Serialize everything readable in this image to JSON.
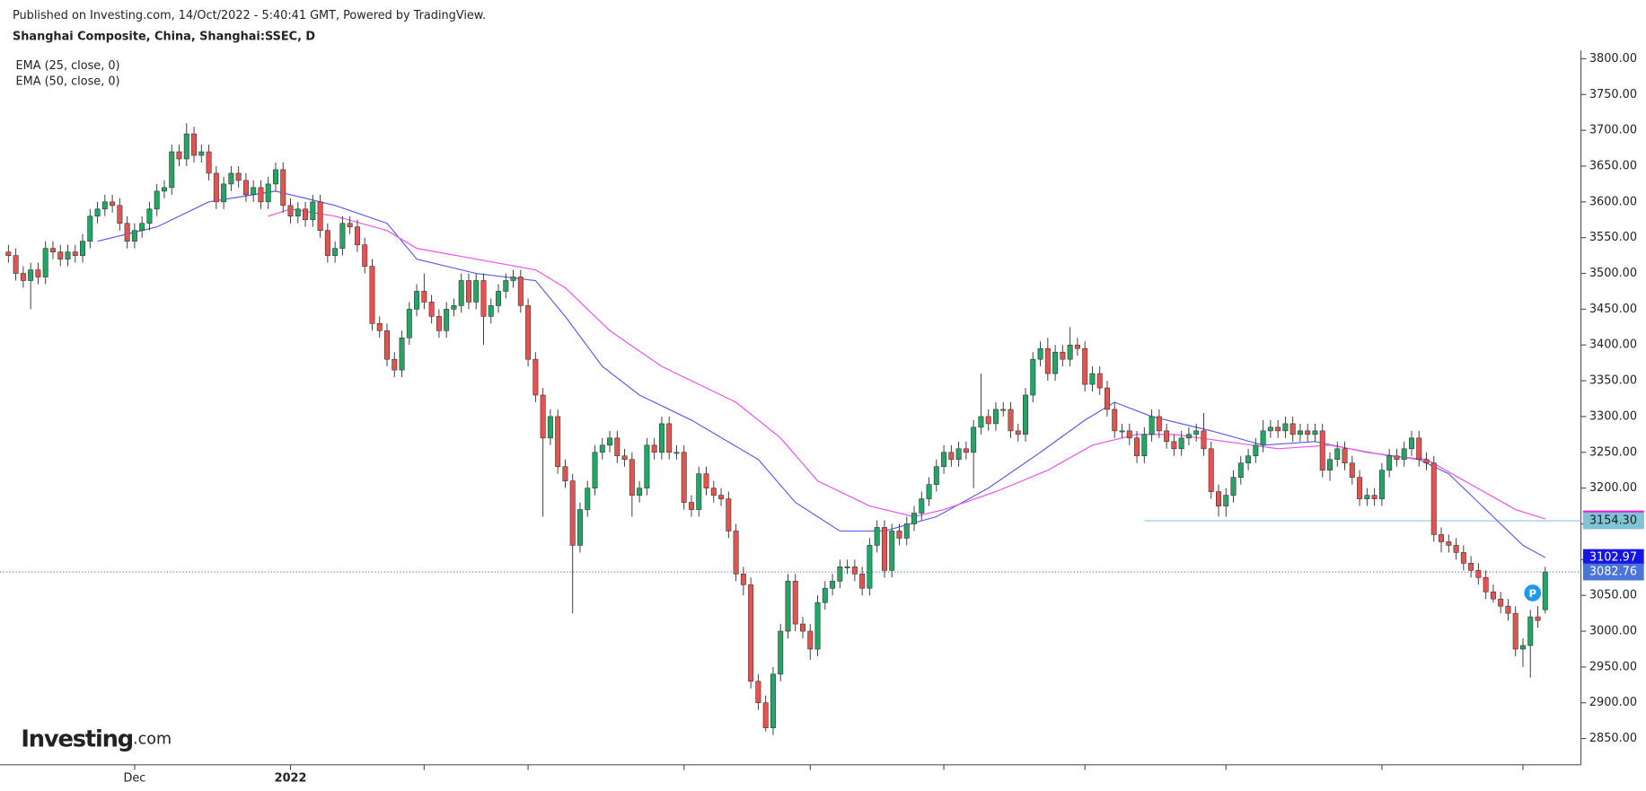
{
  "header": "Published on Investing.com, 14/Oct/2022 - 5:40:41 GMT, Powered by TradingView.",
  "logo": {
    "brand": "Investing",
    "suffix": ".com"
  },
  "chart_data": {
    "type": "candlestick",
    "title": "Shanghai Composite, China, Shanghai:SSEC, D",
    "up_color": "#22a565",
    "down_color": "#e4534f",
    "open": [
      3530,
      3525,
      3500,
      3490,
      3505,
      3495,
      3535,
      3530,
      3520,
      3530,
      3525,
      3545,
      3580,
      3590,
      3600,
      3595,
      3570,
      3545,
      3560,
      3570,
      3590,
      3615,
      3620,
      3670,
      3660,
      3695,
      3665,
      3670,
      3640,
      3600,
      3625,
      3640,
      3630,
      3610,
      3620,
      3600,
      3625,
      3645,
      3595,
      3580,
      3590,
      3575,
      3600,
      3560,
      3525,
      3535,
      3570,
      3565,
      3540,
      3510,
      3430,
      3420,
      3380,
      3365,
      3410,
      3450,
      3475,
      3460,
      3440,
      3420,
      3450,
      3455,
      3490,
      3460,
      3490,
      3440,
      3455,
      3475,
      3490,
      3495,
      3455,
      3380,
      3330,
      3270,
      3300,
      3230,
      3210,
      3120,
      3170,
      3200,
      3250,
      3260,
      3270,
      3245,
      3240,
      3190,
      3200,
      3260,
      3250,
      3290,
      3250,
      3250,
      3180,
      3170,
      3220,
      3200,
      3190,
      3185,
      3140,
      3080,
      3065,
      2930,
      2900,
      2865,
      2940,
      3000,
      3070,
      3010,
      3000,
      2975,
      3040,
      3060,
      3070,
      3090,
      3090,
      3080,
      3060,
      3120,
      3145,
      3085,
      3140,
      3130,
      3150,
      3165,
      3185,
      3205,
      3230,
      3250,
      3240,
      3255,
      3250,
      3285,
      3300,
      3290,
      3310,
      3310,
      3280,
      3275,
      3330,
      3380,
      3395,
      3360,
      3390,
      3380,
      3400,
      3395,
      3345,
      3360,
      3340,
      3310,
      3280,
      3280,
      3270,
      3245,
      3275,
      3300,
      3280,
      3265,
      3255,
      3270,
      3275,
      3280,
      3255,
      3195,
      3175,
      3190,
      3215,
      3235,
      3245,
      3260,
      3280,
      3285,
      3280,
      3290,
      3275,
      3280,
      3275,
      3280,
      3225,
      3240,
      3255,
      3235,
      3215,
      3185,
      3190,
      3185,
      3225,
      3245,
      3240,
      3255,
      3270,
      3240,
      3235,
      3135,
      3125,
      3120,
      3110,
      3095,
      3085,
      3075,
      3055,
      3045,
      3035,
      3025,
      2975,
      2980,
      3020,
      3030
    ],
    "high": [
      3540,
      3535,
      3510,
      3515,
      3515,
      3545,
      3545,
      3540,
      3540,
      3540,
      3555,
      3590,
      3600,
      3610,
      3610,
      3605,
      3580,
      3570,
      3580,
      3600,
      3625,
      3630,
      3680,
      3680,
      3710,
      3705,
      3680,
      3680,
      3650,
      3635,
      3650,
      3650,
      3640,
      3630,
      3630,
      3635,
      3655,
      3655,
      3605,
      3600,
      3600,
      3610,
      3610,
      3570,
      3545,
      3580,
      3580,
      3575,
      3550,
      3520,
      3440,
      3430,
      3390,
      3420,
      3460,
      3485,
      3500,
      3470,
      3450,
      3460,
      3465,
      3500,
      3500,
      3500,
      3500,
      3465,
      3485,
      3500,
      3505,
      3505,
      3465,
      3390,
      3340,
      3310,
      3310,
      3240,
      3220,
      3180,
      3210,
      3260,
      3270,
      3280,
      3280,
      3255,
      3250,
      3210,
      3270,
      3270,
      3300,
      3300,
      3260,
      3260,
      3190,
      3230,
      3230,
      3210,
      3200,
      3195,
      3150,
      3090,
      3075,
      2940,
      2910,
      2950,
      3010,
      3080,
      3080,
      3020,
      3010,
      3050,
      3070,
      3080,
      3100,
      3100,
      3100,
      3090,
      3130,
      3155,
      3155,
      3150,
      3150,
      3160,
      3175,
      3195,
      3215,
      3240,
      3260,
      3260,
      3265,
      3265,
      3295,
      3360,
      3310,
      3320,
      3320,
      3320,
      3290,
      3340,
      3390,
      3405,
      3410,
      3400,
      3400,
      3425,
      3410,
      3405,
      3370,
      3370,
      3350,
      3320,
      3290,
      3290,
      3280,
      3285,
      3310,
      3310,
      3290,
      3275,
      3280,
      3285,
      3290,
      3305,
      3265,
      3205,
      3200,
      3225,
      3245,
      3255,
      3270,
      3295,
      3295,
      3295,
      3300,
      3300,
      3290,
      3290,
      3290,
      3290,
      3250,
      3265,
      3265,
      3245,
      3225,
      3200,
      3200,
      3235,
      3255,
      3255,
      3265,
      3280,
      3280,
      3250,
      3245,
      3145,
      3135,
      3130,
      3120,
      3105,
      3095,
      3085,
      3065,
      3055,
      3045,
      3035,
      2990,
      3030,
      3035,
      3090
    ],
    "low": [
      3515,
      3490,
      3480,
      3450,
      3485,
      3485,
      3520,
      3510,
      3510,
      3515,
      3515,
      3535,
      3570,
      3580,
      3585,
      3560,
      3535,
      3535,
      3550,
      3560,
      3580,
      3605,
      3610,
      3650,
      3650,
      3655,
      3655,
      3630,
      3590,
      3590,
      3615,
      3620,
      3600,
      3600,
      3590,
      3590,
      3615,
      3585,
      3570,
      3570,
      3565,
      3565,
      3550,
      3515,
      3515,
      3525,
      3555,
      3530,
      3500,
      3420,
      3410,
      3370,
      3355,
      3355,
      3400,
      3440,
      3450,
      3430,
      3410,
      3410,
      3440,
      3445,
      3450,
      3450,
      3400,
      3430,
      3445,
      3465,
      3480,
      3445,
      3370,
      3320,
      3160,
      3260,
      3220,
      3200,
      3025,
      3110,
      3160,
      3190,
      3240,
      3250,
      3235,
      3230,
      3160,
      3180,
      3190,
      3240,
      3240,
      3240,
      3240,
      3170,
      3160,
      3160,
      3190,
      3180,
      3175,
      3130,
      3070,
      3050,
      2920,
      2890,
      2860,
      2855,
      2930,
      2990,
      3000,
      2990,
      2960,
      2965,
      3030,
      3050,
      3060,
      3080,
      3070,
      3050,
      3050,
      3110,
      3075,
      3075,
      3120,
      3120,
      3140,
      3155,
      3175,
      3195,
      3220,
      3230,
      3230,
      3240,
      3200,
      3275,
      3280,
      3280,
      3300,
      3270,
      3265,
      3265,
      3320,
      3370,
      3350,
      3350,
      3370,
      3370,
      3385,
      3335,
      3335,
      3330,
      3300,
      3270,
      3270,
      3260,
      3235,
      3235,
      3265,
      3270,
      3255,
      3245,
      3245,
      3260,
      3265,
      3245,
      3185,
      3160,
      3160,
      3180,
      3205,
      3225,
      3235,
      3250,
      3270,
      3270,
      3270,
      3265,
      3265,
      3265,
      3265,
      3215,
      3210,
      3230,
      3225,
      3205,
      3175,
      3175,
      3175,
      3175,
      3215,
      3230,
      3230,
      3245,
      3230,
      3225,
      3125,
      3110,
      3110,
      3100,
      3085,
      3075,
      3065,
      3045,
      3040,
      3025,
      3015,
      2965,
      2950,
      2935,
      3005,
      3025
    ],
    "close": [
      3525,
      3500,
      3490,
      3505,
      3495,
      3535,
      3530,
      3520,
      3530,
      3525,
      3545,
      3580,
      3590,
      3600,
      3595,
      3570,
      3545,
      3560,
      3570,
      3590,
      3615,
      3620,
      3670,
      3660,
      3695,
      3665,
      3670,
      3640,
      3600,
      3625,
      3640,
      3630,
      3610,
      3620,
      3600,
      3625,
      3645,
      3595,
      3580,
      3590,
      3575,
      3600,
      3560,
      3525,
      3535,
      3570,
      3565,
      3540,
      3510,
      3430,
      3420,
      3380,
      3365,
      3410,
      3450,
      3475,
      3460,
      3440,
      3420,
      3450,
      3455,
      3490,
      3460,
      3490,
      3440,
      3455,
      3475,
      3490,
      3495,
      3455,
      3380,
      3330,
      3270,
      3300,
      3230,
      3210,
      3120,
      3170,
      3200,
      3250,
      3260,
      3270,
      3245,
      3240,
      3190,
      3200,
      3260,
      3250,
      3290,
      3250,
      3250,
      3180,
      3170,
      3220,
      3200,
      3190,
      3185,
      3140,
      3080,
      3065,
      2930,
      2900,
      2865,
      2940,
      3000,
      3070,
      3010,
      3000,
      2975,
      3040,
      3060,
      3070,
      3090,
      3090,
      3080,
      3060,
      3120,
      3145,
      3085,
      3140,
      3130,
      3150,
      3165,
      3185,
      3205,
      3230,
      3250,
      3240,
      3255,
      3250,
      3285,
      3300,
      3290,
      3310,
      3310,
      3280,
      3275,
      3330,
      3380,
      3395,
      3360,
      3390,
      3380,
      3400,
      3395,
      3345,
      3360,
      3340,
      3310,
      3280,
      3280,
      3270,
      3245,
      3275,
      3300,
      3280,
      3265,
      3255,
      3270,
      3275,
      3280,
      3255,
      3195,
      3175,
      3190,
      3215,
      3235,
      3245,
      3260,
      3280,
      3285,
      3280,
      3290,
      3275,
      3280,
      3275,
      3280,
      3225,
      3240,
      3255,
      3235,
      3215,
      3185,
      3190,
      3185,
      3225,
      3245,
      3240,
      3255,
      3270,
      3240,
      3235,
      3135,
      3125,
      3120,
      3110,
      3095,
      3085,
      3075,
      3055,
      3045,
      3035,
      3025,
      2975,
      2980,
      3020,
      3015,
      3082.76
    ],
    "series": [
      {
        "name": "EMA (25, close, 0)",
        "color": "#5b5bf0",
        "tag_color": "#1515e8",
        "x": [
          12,
          20,
          27,
          36,
          44,
          51,
          55,
          63,
          71,
          75,
          80,
          85,
          92,
          101,
          106,
          112,
          118,
          125,
          132,
          139,
          145,
          149,
          154,
          162,
          169,
          176,
          183,
          190,
          194,
          200,
          204,
          207
        ],
        "values": [
          3545,
          3565,
          3600,
          3615,
          3595,
          3570,
          3520,
          3500,
          3490,
          3440,
          3370,
          3330,
          3295,
          3240,
          3180,
          3140,
          3140,
          3160,
          3200,
          3250,
          3295,
          3320,
          3300,
          3280,
          3260,
          3265,
          3250,
          3240,
          3220,
          3160,
          3120,
          3102.97
        ]
      },
      {
        "name": "EMA (50, close, 0)",
        "color": "#f050e8",
        "tag_color": "#f019e0",
        "x": [
          35,
          38,
          44,
          51,
          55,
          63,
          71,
          75,
          81,
          88,
          98,
          104,
          109,
          116,
          122,
          126,
          133,
          140,
          146,
          152,
          157,
          164,
          171,
          178,
          186,
          191,
          197,
          203,
          207
        ],
        "values": [
          3580,
          3590,
          3580,
          3560,
          3535,
          3520,
          3505,
          3480,
          3420,
          3370,
          3320,
          3270,
          3210,
          3175,
          3160,
          3170,
          3195,
          3225,
          3260,
          3275,
          3275,
          3265,
          3255,
          3260,
          3245,
          3240,
          3205,
          3170,
          3156.91
        ]
      }
    ],
    "hline": {
      "value": 3154.3,
      "label": "3154.30",
      "x_start": 153,
      "color": "#8fc9dc",
      "tag_color": "#7fc4d6"
    },
    "price_tag_color": "#4a74d8",
    "marker_label": "P",
    "ylim": [
      2825,
      3815
    ],
    "yticks": [
      {
        "value": 2850,
        "label": "2850.00"
      },
      {
        "value": 2900,
        "label": "2900.00"
      },
      {
        "value": 2950,
        "label": "2950.00"
      },
      {
        "value": 3000,
        "label": "3000.00"
      },
      {
        "value": 3050,
        "label": "3050.00"
      },
      {
        "value": 3100,
        "label": "3100.00"
      },
      {
        "value": 3150,
        "label": "3150.00"
      },
      {
        "value": 3200,
        "label": "3200.00"
      },
      {
        "value": 3250,
        "label": "3250.00"
      },
      {
        "value": 3300,
        "label": "3300.00"
      },
      {
        "value": 3350,
        "label": "3350.00"
      },
      {
        "value": 3400,
        "label": "3400.00"
      },
      {
        "value": 3450,
        "label": "3450.00"
      },
      {
        "value": 3500,
        "label": "3500.00"
      },
      {
        "value": 3550,
        "label": "3550.00"
      },
      {
        "value": 3600,
        "label": "3600.00"
      },
      {
        "value": 3650,
        "label": "3650.00"
      },
      {
        "value": 3700,
        "label": "3700.00"
      },
      {
        "value": 3750,
        "label": "3750.00"
      },
      {
        "value": 3800,
        "label": "3800.00"
      }
    ],
    "xticks": [
      {
        "value": 17,
        "label": "Dec"
      },
      {
        "value": 38,
        "label": "2022"
      },
      {
        "value": 56,
        "label": null
      },
      {
        "value": 70,
        "label": null
      },
      {
        "value": 91,
        "label": null
      },
      {
        "value": 108,
        "label": null
      },
      {
        "value": 126,
        "label": null
      },
      {
        "value": 145,
        "label": null
      },
      {
        "value": 164,
        "label": null
      },
      {
        "value": 185,
        "label": null
      },
      {
        "value": 204,
        "label": null
      }
    ]
  }
}
